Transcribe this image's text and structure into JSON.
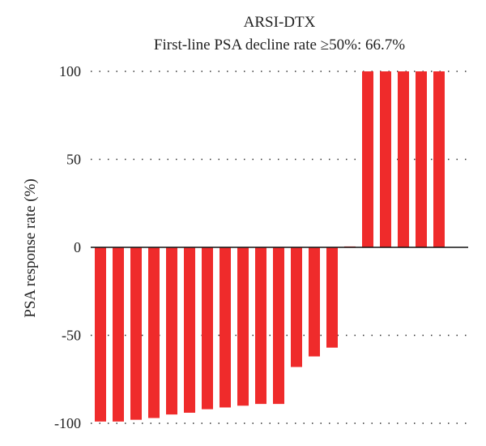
{
  "chart_data": {
    "type": "bar",
    "title": "ARSI-DTX",
    "subtitle": "First-line PSA decline rate ≥50%: 66.7%",
    "xlabel": "",
    "ylabel": "PSA response rate (%)",
    "ylim": [
      -100,
      100
    ],
    "yticks": [
      100,
      50,
      0,
      -50,
      -100
    ],
    "ytick_labels": [
      "100",
      "50",
      "0",
      "-50",
      "-100"
    ],
    "grid": "dotted horizontal",
    "bar_color": "#ef2b2b",
    "values": [
      -99,
      -99,
      -98,
      -97,
      -95,
      -94,
      -92,
      -91,
      -90,
      -89,
      -89,
      -68,
      -62,
      -57,
      0.5,
      100,
      100,
      100,
      100,
      100
    ]
  }
}
